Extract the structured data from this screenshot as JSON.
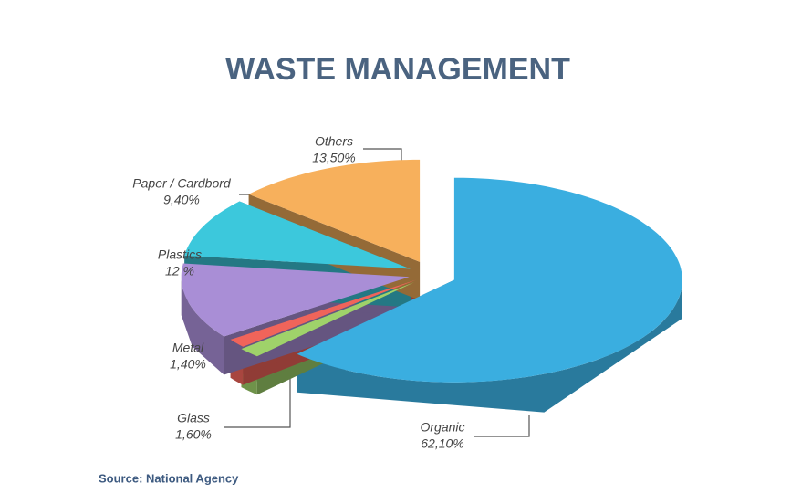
{
  "chart_data": {
    "type": "pie",
    "title": "WASTE MANAGEMENT",
    "categories": [
      "Organic",
      "Glass",
      "Metal",
      "Plastics",
      "Paper / Cardbord",
      "Others"
    ],
    "values": [
      62.1,
      1.6,
      1.4,
      12,
      9.4,
      13.5
    ],
    "value_labels": [
      "62,10%",
      "1,60%",
      "1,40%",
      "12 %",
      "9,40%",
      "13,50%"
    ],
    "colors": [
      "#3aaee0",
      "#9fd26a",
      "#f0645a",
      "#a98ed6",
      "#3cc8dc",
      "#f7b05c"
    ],
    "source": "Source: National Agency"
  }
}
